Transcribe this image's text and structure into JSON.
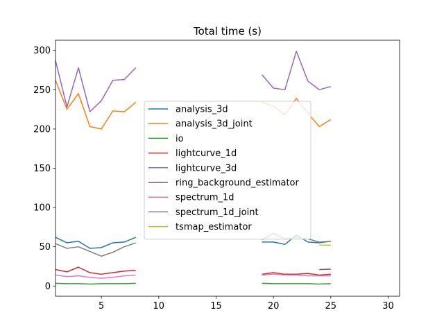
{
  "chart_data": {
    "type": "line",
    "title": "Total time (s)",
    "xlabel": "",
    "ylabel": "",
    "xlim": [
      1,
      31
    ],
    "ylim": [
      -13,
      313
    ],
    "x_ticks": [
      5,
      10,
      15,
      20,
      25,
      30
    ],
    "y_ticks": [
      0,
      50,
      100,
      150,
      200,
      250,
      300
    ],
    "grid": false,
    "legend_position": "center",
    "series": [
      {
        "name": "analysis_3d",
        "color": "#1f77b4",
        "points": [
          [
            1,
            62
          ],
          [
            2,
            55
          ],
          [
            3,
            57
          ],
          [
            4,
            48
          ],
          [
            5,
            49
          ],
          [
            6,
            55
          ],
          [
            7,
            56
          ],
          [
            8,
            62
          ],
          [
            null,
            null
          ],
          [
            19,
            56
          ],
          [
            20,
            56
          ],
          [
            21,
            53
          ],
          [
            22,
            65
          ],
          [
            23,
            56
          ],
          [
            24,
            55
          ],
          [
            25,
            57
          ]
        ]
      },
      {
        "name": "analysis_3d_joint",
        "color": "#ff7f0e",
        "points": [
          [
            1,
            262
          ],
          [
            2,
            225
          ],
          [
            3,
            245
          ],
          [
            4,
            203
          ],
          [
            5,
            200
          ],
          [
            6,
            223
          ],
          [
            7,
            222
          ],
          [
            8,
            234
          ],
          [
            null,
            null
          ],
          [
            19,
            234
          ],
          [
            20,
            229
          ],
          [
            21,
            218
          ],
          [
            22,
            239
          ],
          [
            23,
            220
          ],
          [
            24,
            203
          ],
          [
            25,
            212
          ]
        ]
      },
      {
        "name": "io",
        "color": "#2ca02c",
        "points": [
          [
            1,
            3.5
          ],
          [
            2,
            3
          ],
          [
            3,
            3
          ],
          [
            4,
            2.5
          ],
          [
            5,
            3
          ],
          [
            6,
            3
          ],
          [
            7,
            3
          ],
          [
            8,
            3.5
          ],
          [
            null,
            null
          ],
          [
            19,
            3.5
          ],
          [
            20,
            3
          ],
          [
            21,
            3
          ],
          [
            22,
            3
          ],
          [
            23,
            3
          ],
          [
            24,
            2.5
          ],
          [
            25,
            3
          ]
        ]
      },
      {
        "name": "lightcurve_1d",
        "color": "#d62728",
        "points": [
          [
            1,
            21
          ],
          [
            2,
            18
          ],
          [
            3,
            24
          ],
          [
            4,
            17
          ],
          [
            5,
            15
          ],
          [
            6,
            17
          ],
          [
            7,
            19
          ],
          [
            8,
            20
          ],
          [
            null,
            null
          ],
          [
            19,
            15
          ],
          [
            20,
            17
          ],
          [
            21,
            15
          ],
          [
            22,
            15
          ],
          [
            23,
            16
          ],
          [
            24,
            14
          ],
          [
            25,
            15
          ]
        ]
      },
      {
        "name": "lightcurve_3d",
        "color": "#9467bd",
        "points": [
          [
            1,
            287
          ],
          [
            2,
            228
          ],
          [
            3,
            278
          ],
          [
            4,
            222
          ],
          [
            5,
            236
          ],
          [
            6,
            262
          ],
          [
            7,
            263
          ],
          [
            8,
            278
          ],
          [
            null,
            null
          ],
          [
            19,
            269
          ],
          [
            20,
            252
          ],
          [
            21,
            250
          ],
          [
            22,
            299
          ],
          [
            23,
            261
          ],
          [
            24,
            250
          ],
          [
            25,
            254
          ]
        ]
      },
      {
        "name": "ring_background_estimator",
        "color": "#8c564b",
        "points": [
          [
            24,
            21
          ],
          [
            25,
            21.5
          ]
        ]
      },
      {
        "name": "spectrum_1d",
        "color": "#e377c2",
        "points": [
          [
            1,
            14
          ],
          [
            2,
            12
          ],
          [
            3,
            13
          ],
          [
            4,
            11
          ],
          [
            5,
            10
          ],
          [
            6,
            11
          ],
          [
            7,
            13
          ],
          [
            8,
            14
          ],
          [
            null,
            null
          ],
          [
            19,
            14
          ],
          [
            20,
            15
          ],
          [
            21,
            14
          ],
          [
            22,
            14
          ],
          [
            23,
            13
          ],
          [
            24,
            13
          ],
          [
            25,
            13
          ]
        ]
      },
      {
        "name": "spectrum_1d_joint",
        "color": "#7f7f7f",
        "points": [
          [
            1,
            54
          ],
          [
            2,
            48
          ],
          [
            3,
            50
          ],
          [
            4,
            44
          ],
          [
            5,
            38
          ],
          [
            6,
            43
          ],
          [
            7,
            50
          ],
          [
            8,
            55
          ],
          [
            null,
            null
          ],
          [
            19,
            59
          ],
          [
            20,
            67
          ],
          [
            21,
            60
          ],
          [
            22,
            62
          ],
          [
            23,
            60
          ],
          [
            24,
            56
          ],
          [
            25,
            57
          ]
        ]
      },
      {
        "name": "tsmap_estimator",
        "color": "#bcbd22",
        "points": [
          [
            24,
            52
          ],
          [
            25,
            52
          ]
        ]
      }
    ]
  }
}
